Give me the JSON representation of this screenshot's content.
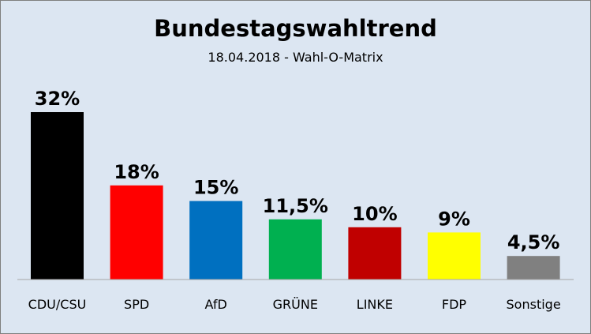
{
  "chart_data": {
    "type": "bar",
    "title": "Bundestagswahltrend",
    "subtitle": "18.04.2018 - Wahl-O-Matrix",
    "categories": [
      "CDU/CSU",
      "SPD",
      "AfD",
      "GRÜNE",
      "LINKE",
      "FDP",
      "Sonstige"
    ],
    "values": [
      32,
      18,
      15,
      11.5,
      10,
      9,
      4.5
    ],
    "value_labels": [
      "32%",
      "18%",
      "15%",
      "11,5%",
      "10%",
      "9%",
      "4,5%"
    ],
    "colors": [
      "#000000",
      "#ff0000",
      "#0070c0",
      "#00b050",
      "#c00000",
      "#ffff00",
      "#808080"
    ],
    "ylim": [
      0,
      32
    ],
    "grid": false,
    "legend": "none",
    "background": "#dce6f2",
    "axis_line_color": "#a6a6a6"
  }
}
